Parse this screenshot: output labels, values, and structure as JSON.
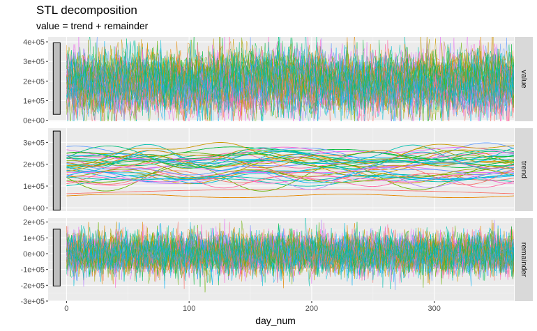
{
  "chart_data": {
    "type": "line",
    "title": "STL decomposition",
    "subtitle": "value = trend + remainder",
    "xlabel": "day_num",
    "ylabel": "",
    "xlim": [
      -15,
      365
    ],
    "x_ticks": [
      0,
      100,
      200,
      300
    ],
    "x_tick_labels": [
      "0",
      "100",
      "200",
      "300"
    ],
    "n_series": 40,
    "n_points": 366,
    "facets": [
      {
        "name": "value",
        "ylim": [
          -5000,
          425000
        ],
        "y_ticks": [
          0,
          100000,
          200000,
          300000,
          400000
        ],
        "y_tick_labels": [
          "0e+00",
          "1e+05",
          "2e+05",
          "3e+05",
          "4e+05"
        ],
        "scale_bar": [
          30000,
          395000
        ]
      },
      {
        "name": "trend",
        "ylim": [
          -15000,
          365000
        ],
        "y_ticks": [
          0,
          100000,
          200000,
          300000
        ],
        "y_tick_labels": [
          "0e+00",
          "1e+05",
          "2e+05",
          "3e+05"
        ],
        "scale_bar": [
          -10000,
          352000
        ]
      },
      {
        "name": "remainder",
        "ylim": [
          -300000,
          225000
        ],
        "y_ticks": [
          -300000,
          -200000,
          -100000,
          0,
          100000,
          200000
        ],
        "y_tick_labels": [
          "-3e+05",
          "-2e+05",
          "-1e+05",
          "0e+00",
          "1e+05",
          "2e+05"
        ],
        "scale_bar": [
          -205000,
          155000
        ]
      }
    ],
    "palette": [
      "#F8766D",
      "#E58700",
      "#C99800",
      "#A3A500",
      "#6BB100",
      "#00BA38",
      "#00BF7D",
      "#00C0AF",
      "#00BCD8",
      "#00B0F6",
      "#619CFF",
      "#B983FF",
      "#E76BF3",
      "#FD61D1",
      "#FF67A4"
    ],
    "series_mean_range": [
      120000,
      260000
    ],
    "trend_amplitude_range": [
      10000,
      50000
    ],
    "remainder_sd": 65000,
    "seed": 7
  }
}
